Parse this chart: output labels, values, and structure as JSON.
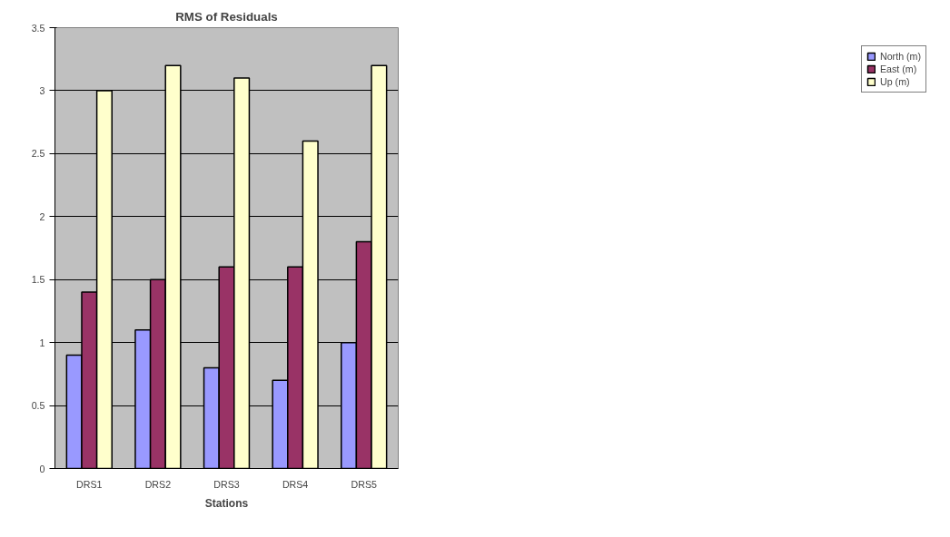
{
  "chart_data": {
    "type": "bar",
    "title": "RMS of Residuals",
    "xlabel": "Stations",
    "categories": [
      "DRS1",
      "DRS2",
      "DRS3",
      "DRS4",
      "DRS5"
    ],
    "series": [
      {
        "name": "North (m)",
        "color": "#9999ff",
        "values": [
          0.9,
          1.1,
          0.8,
          0.7,
          1.0
        ]
      },
      {
        "name": "East (m)",
        "color": "#993366",
        "values": [
          1.4,
          1.5,
          1.6,
          1.6,
          1.8
        ]
      },
      {
        "name": "Up (m)",
        "color": "#ffffcc",
        "values": [
          3.0,
          3.2,
          3.1,
          2.6,
          3.2
        ]
      }
    ],
    "ylim": [
      0,
      3.5
    ],
    "yticks": [
      0,
      0.5,
      1,
      1.5,
      2,
      2.5,
      3,
      3.5
    ],
    "grid": "y",
    "legend": "right"
  }
}
